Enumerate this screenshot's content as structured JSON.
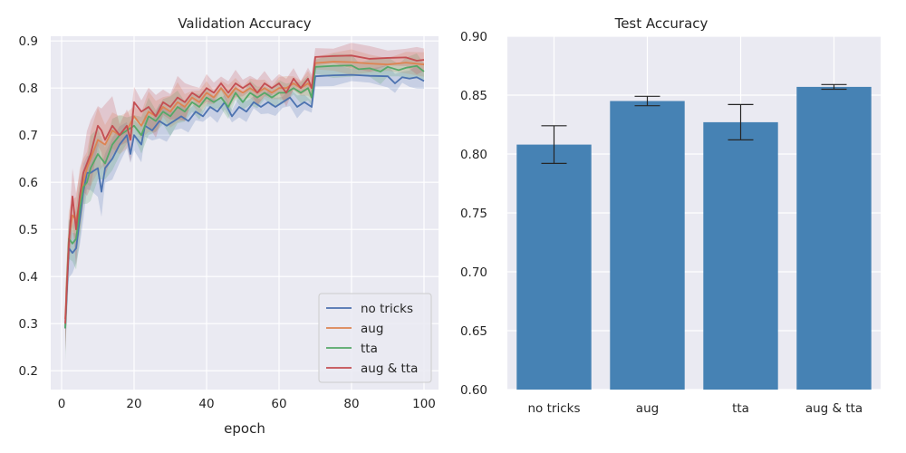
{
  "chart_data": [
    {
      "type": "line",
      "title": "Validation Accuracy",
      "xlabel": "epoch",
      "ylabel": "",
      "xlim": [
        -3,
        104
      ],
      "ylim": [
        0.16,
        0.91
      ],
      "xticks": [
        0,
        20,
        40,
        60,
        80,
        100
      ],
      "yticks": [
        0.2,
        0.3,
        0.4,
        0.5,
        0.6,
        0.7,
        0.8,
        0.9
      ],
      "grid": true,
      "legend_position": "lower-right",
      "shaded_band": "variability band around each line",
      "series": [
        {
          "name": "no tricks",
          "color": "#4c72b0",
          "x": [
            1,
            2,
            3,
            4,
            5,
            6,
            7,
            8,
            10,
            11,
            12,
            14,
            16,
            18,
            19,
            20,
            22,
            23,
            25,
            27,
            29,
            31,
            33,
            35,
            37,
            39,
            41,
            43,
            45,
            47,
            49,
            51,
            53,
            55,
            57,
            59,
            61,
            63,
            65,
            67,
            69,
            70,
            75,
            80,
            85,
            90,
            92,
            94,
            96,
            98,
            100
          ],
          "y": [
            0.29,
            0.46,
            0.45,
            0.46,
            0.52,
            0.58,
            0.62,
            0.62,
            0.63,
            0.58,
            0.63,
            0.65,
            0.68,
            0.7,
            0.66,
            0.7,
            0.68,
            0.72,
            0.71,
            0.73,
            0.72,
            0.73,
            0.74,
            0.73,
            0.75,
            0.74,
            0.76,
            0.75,
            0.77,
            0.74,
            0.76,
            0.75,
            0.77,
            0.76,
            0.77,
            0.76,
            0.77,
            0.78,
            0.76,
            0.77,
            0.76,
            0.825,
            0.827,
            0.828,
            0.826,
            0.825,
            0.81,
            0.823,
            0.82,
            0.823,
            0.815
          ],
          "band": 0.018
        },
        {
          "name": "aug",
          "color": "#dd8452",
          "x": [
            1,
            2,
            3,
            4,
            5,
            6,
            7,
            8,
            10,
            12,
            14,
            16,
            18,
            20,
            22,
            24,
            26,
            28,
            30,
            32,
            34,
            36,
            38,
            40,
            42,
            44,
            46,
            48,
            50,
            52,
            54,
            56,
            58,
            60,
            62,
            64,
            66,
            68,
            69,
            70,
            75,
            80,
            85,
            90,
            95,
            100
          ],
          "y": [
            0.31,
            0.48,
            0.53,
            0.52,
            0.56,
            0.6,
            0.63,
            0.65,
            0.69,
            0.68,
            0.71,
            0.7,
            0.71,
            0.74,
            0.72,
            0.75,
            0.74,
            0.76,
            0.75,
            0.77,
            0.76,
            0.78,
            0.77,
            0.79,
            0.78,
            0.8,
            0.78,
            0.8,
            0.79,
            0.8,
            0.79,
            0.8,
            0.79,
            0.8,
            0.8,
            0.81,
            0.8,
            0.81,
            0.8,
            0.853,
            0.856,
            0.855,
            0.852,
            0.85,
            0.854,
            0.85
          ],
          "band": 0.02
        },
        {
          "name": "tta",
          "color": "#55a868",
          "x": [
            1,
            2,
            3,
            4,
            5,
            6,
            7,
            8,
            10,
            12,
            14,
            16,
            18,
            20,
            22,
            24,
            26,
            28,
            30,
            32,
            34,
            36,
            38,
            40,
            42,
            44,
            46,
            48,
            50,
            52,
            54,
            56,
            58,
            60,
            62,
            64,
            66,
            68,
            69,
            70,
            75,
            80,
            82,
            85,
            88,
            90,
            93,
            95,
            98,
            100
          ],
          "y": [
            0.29,
            0.48,
            0.47,
            0.48,
            0.54,
            0.59,
            0.6,
            0.63,
            0.66,
            0.64,
            0.68,
            0.7,
            0.71,
            0.72,
            0.7,
            0.74,
            0.73,
            0.75,
            0.74,
            0.76,
            0.75,
            0.77,
            0.76,
            0.78,
            0.77,
            0.78,
            0.76,
            0.79,
            0.77,
            0.79,
            0.78,
            0.79,
            0.78,
            0.79,
            0.79,
            0.8,
            0.79,
            0.8,
            0.78,
            0.845,
            0.847,
            0.848,
            0.84,
            0.842,
            0.835,
            0.845,
            0.838,
            0.843,
            0.847,
            0.835
          ],
          "band": 0.02
        },
        {
          "name": "aug & tta",
          "color": "#c44e52",
          "x": [
            1,
            2,
            3,
            4,
            5,
            6,
            7,
            8,
            10,
            11,
            12,
            14,
            16,
            18,
            19,
            20,
            22,
            24,
            26,
            28,
            30,
            32,
            34,
            36,
            38,
            40,
            42,
            44,
            46,
            48,
            50,
            52,
            54,
            56,
            58,
            60,
            62,
            64,
            66,
            68,
            69,
            70,
            75,
            80,
            85,
            90,
            95,
            98,
            100
          ],
          "y": [
            0.3,
            0.47,
            0.57,
            0.5,
            0.57,
            0.62,
            0.64,
            0.66,
            0.72,
            0.71,
            0.69,
            0.72,
            0.7,
            0.72,
            0.69,
            0.77,
            0.75,
            0.76,
            0.74,
            0.77,
            0.76,
            0.78,
            0.77,
            0.79,
            0.78,
            0.8,
            0.79,
            0.81,
            0.79,
            0.81,
            0.8,
            0.81,
            0.79,
            0.81,
            0.8,
            0.81,
            0.79,
            0.82,
            0.8,
            0.82,
            0.8,
            0.866,
            0.868,
            0.869,
            0.862,
            0.864,
            0.865,
            0.858,
            0.86
          ],
          "band": 0.022
        }
      ]
    },
    {
      "type": "bar",
      "title": "Test Accuracy",
      "xlabel": "",
      "ylabel": "",
      "ylim": [
        0.6,
        0.9
      ],
      "yticks": [
        "0.60",
        "0.65",
        "0.70",
        "0.75",
        "0.80",
        "0.85",
        "0.90"
      ],
      "grid": true,
      "bar_color": "#4682b4",
      "categories": [
        "no tricks",
        "aug",
        "tta",
        "aug & tta"
      ],
      "values": [
        0.808,
        0.845,
        0.827,
        0.857
      ],
      "errors": [
        0.016,
        0.004,
        0.015,
        0.002
      ]
    }
  ]
}
